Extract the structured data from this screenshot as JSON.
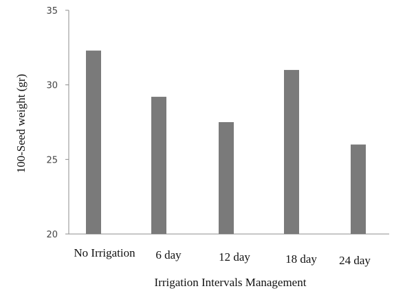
{
  "chart_data": {
    "type": "bar",
    "title": "",
    "xlabel": "Irrigation Intervals Management",
    "ylabel": "100-Seed weight (gr)",
    "categories": [
      "No Irrigation",
      "6 day",
      "12 day",
      "18 day",
      "24 day"
    ],
    "values": [
      32.3,
      29.2,
      27.5,
      31.0,
      26.0
    ],
    "ylim": [
      20,
      35
    ],
    "yticks": [
      "20",
      "25",
      "30",
      "35"
    ],
    "grid": false,
    "legend": "none",
    "bar_color": "#7a7a7a"
  }
}
